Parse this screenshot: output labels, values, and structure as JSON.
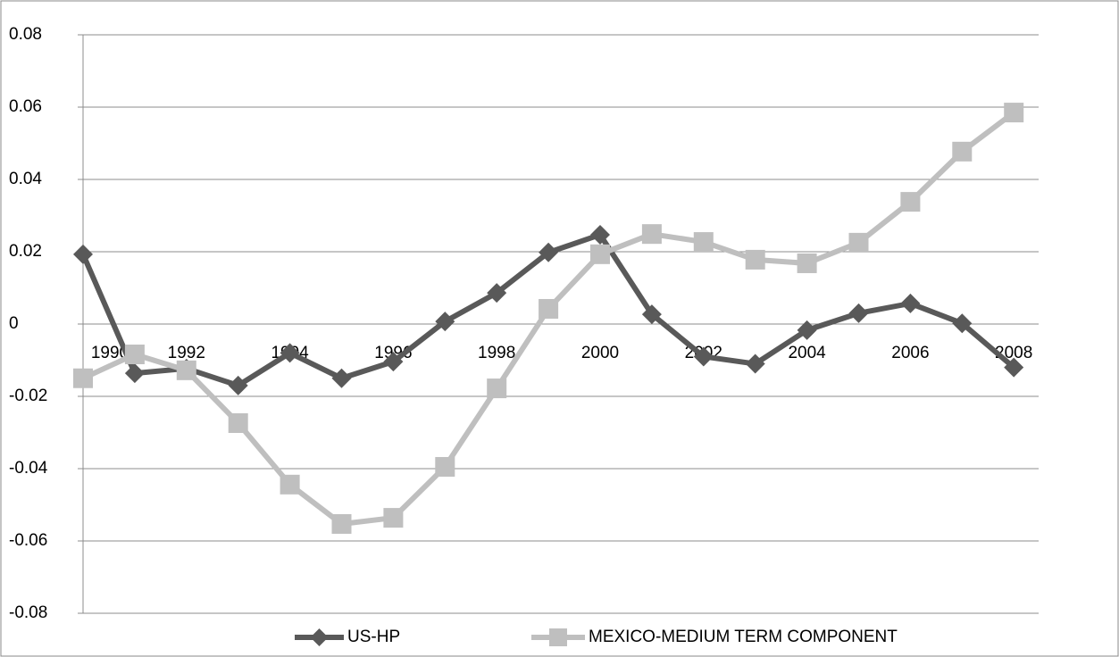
{
  "chart_data": {
    "type": "line",
    "categories": [
      "1990",
      null,
      "1992",
      null,
      "1994",
      null,
      "1996",
      null,
      "1998",
      null,
      "2000",
      null,
      "2002",
      null,
      "2004",
      null,
      "2006",
      null,
      "2008"
    ],
    "series": [
      {
        "name": "US-HP",
        "color": "#595959",
        "marker": "diamond",
        "values": [
          0.0193,
          -0.0136,
          -0.0123,
          -0.017,
          -0.008,
          -0.015,
          -0.0104,
          0.0007,
          0.0086,
          0.0198,
          0.0247,
          0.0027,
          -0.009,
          -0.011,
          -0.0017,
          0.003,
          0.0057,
          0.0002,
          -0.012
        ]
      },
      {
        "name": "MEXICO-MEDIUM TERM COMPONENT",
        "color": "#bfbfbf",
        "marker": "square",
        "values": [
          -0.015,
          -0.0084,
          -0.0128,
          -0.0274,
          -0.0444,
          -0.0553,
          -0.0536,
          -0.0395,
          -0.0178,
          0.0042,
          0.0193,
          0.0249,
          0.0227,
          0.0178,
          0.0168,
          0.0225,
          0.0338,
          0.0477,
          0.0585
        ]
      }
    ],
    "ylim": [
      -0.08,
      0.08
    ],
    "yticks": [
      -0.08,
      -0.06,
      -0.04,
      -0.02,
      0,
      0.02,
      0.04,
      0.06,
      0.08
    ],
    "grid": true,
    "legend": "bottom"
  }
}
